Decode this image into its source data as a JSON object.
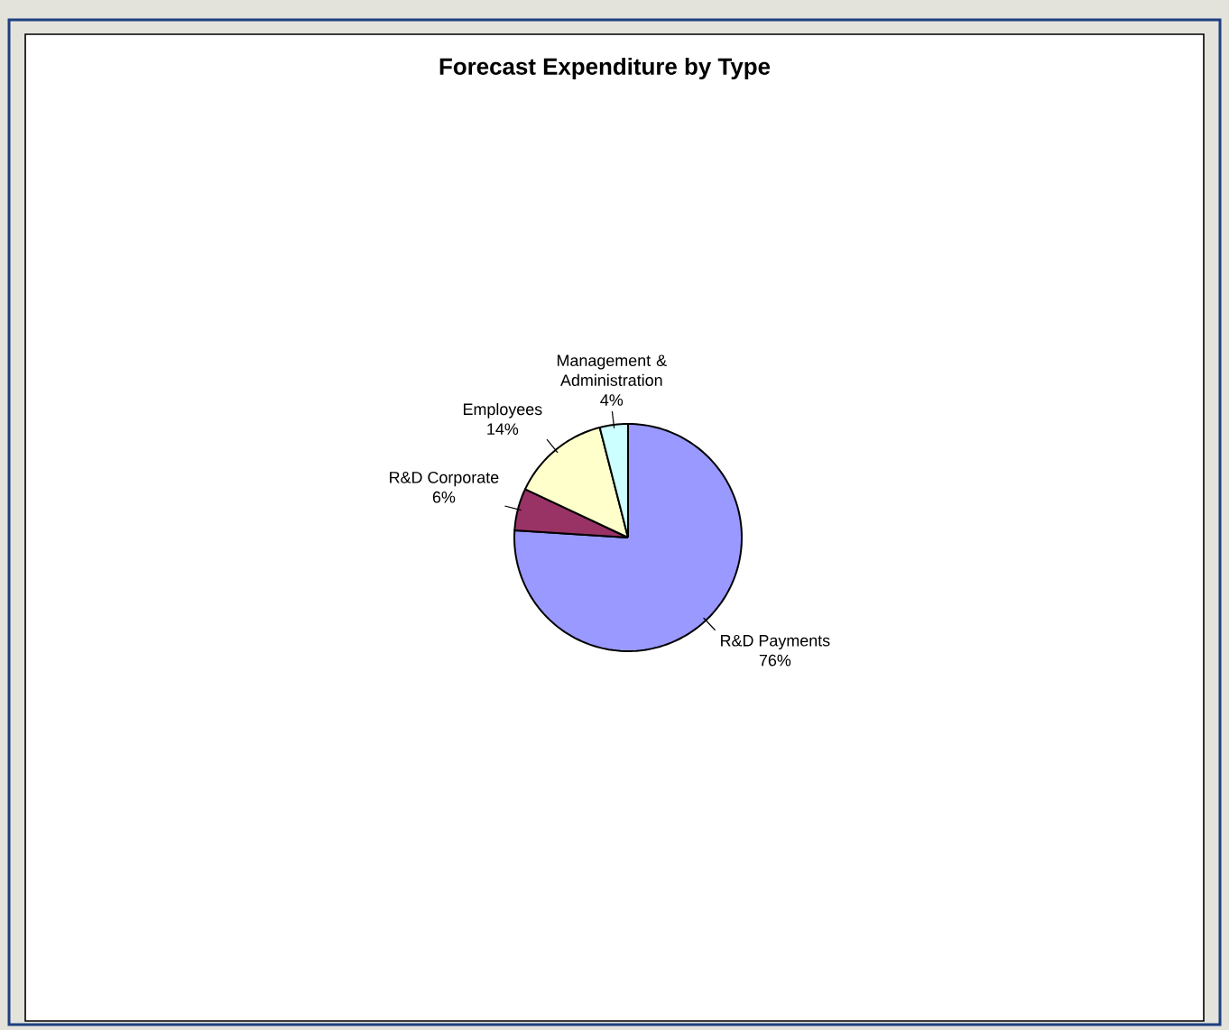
{
  "chart_data": {
    "type": "pie",
    "title": "Forecast Expenditure by Type",
    "categories": [
      "R&D Payments",
      "R&D Corporate",
      "Employees",
      "Management & Administration"
    ],
    "values": [
      76,
      6,
      14,
      4
    ],
    "value_labels": [
      "76%",
      "6%",
      "14%",
      "4%"
    ],
    "colors": [
      "#9999ff",
      "#993366",
      "#ffffcc",
      "#ccffff"
    ]
  }
}
